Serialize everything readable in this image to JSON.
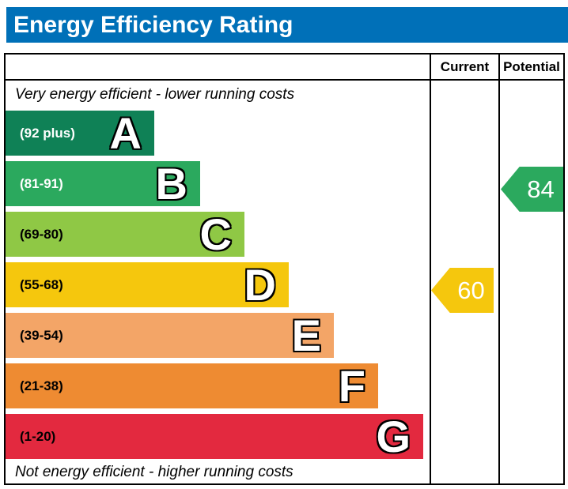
{
  "title": "Energy Efficiency Rating",
  "columns": {
    "current": "Current",
    "potential": "Potential"
  },
  "notes": {
    "top": "Very energy efficient - lower running costs",
    "bottom": "Not energy efficient - higher running costs"
  },
  "bands": [
    {
      "letter": "A",
      "range": "(92 plus)",
      "color": "#0f8156",
      "range_color": "#ffffff"
    },
    {
      "letter": "B",
      "range": "(81-91)",
      "color": "#2ba95e",
      "range_color": "#ffffff"
    },
    {
      "letter": "C",
      "range": "(69-80)",
      "color": "#8fc845",
      "range_color": "#000000"
    },
    {
      "letter": "D",
      "range": "(55-68)",
      "color": "#f5c70d",
      "range_color": "#000000"
    },
    {
      "letter": "E",
      "range": "(39-54)",
      "color": "#f3a567",
      "range_color": "#000000"
    },
    {
      "letter": "F",
      "range": "(21-38)",
      "color": "#ee8b32",
      "range_color": "#000000"
    },
    {
      "letter": "G",
      "range": "(1-20)",
      "color": "#e3293f",
      "range_color": "#000000"
    }
  ],
  "current": {
    "value": "60",
    "band": "D",
    "color": "#f5c70d"
  },
  "potential": {
    "value": "84",
    "band": "B",
    "color": "#2ba95e"
  },
  "colors": {
    "header_bar": "#0070b8",
    "frame_border": "#000000"
  },
  "chart_data": {
    "type": "bar",
    "title": "Energy Efficiency Rating",
    "categories": [
      "A (92 plus)",
      "B (81-91)",
      "C (69-80)",
      "D (55-68)",
      "E (39-54)",
      "F (21-38)",
      "G (1-20)"
    ],
    "band_score_ranges": [
      [
        92,
        100
      ],
      [
        81,
        91
      ],
      [
        69,
        80
      ],
      [
        55,
        68
      ],
      [
        39,
        54
      ],
      [
        21,
        38
      ],
      [
        1,
        20
      ]
    ],
    "band_colors": [
      "#0f8156",
      "#2ba95e",
      "#8fc845",
      "#f5c70d",
      "#f3a567",
      "#ee8b32",
      "#e3293f"
    ],
    "columns": [
      "Current",
      "Potential"
    ],
    "current_rating": 60,
    "current_band": "D",
    "potential_rating": 84,
    "potential_band": "B",
    "top_label": "Very energy efficient - lower running costs",
    "bottom_label": "Not energy efficient - higher running costs",
    "xlim": [
      1,
      100
    ],
    "legend": "off",
    "grid": "off"
  }
}
